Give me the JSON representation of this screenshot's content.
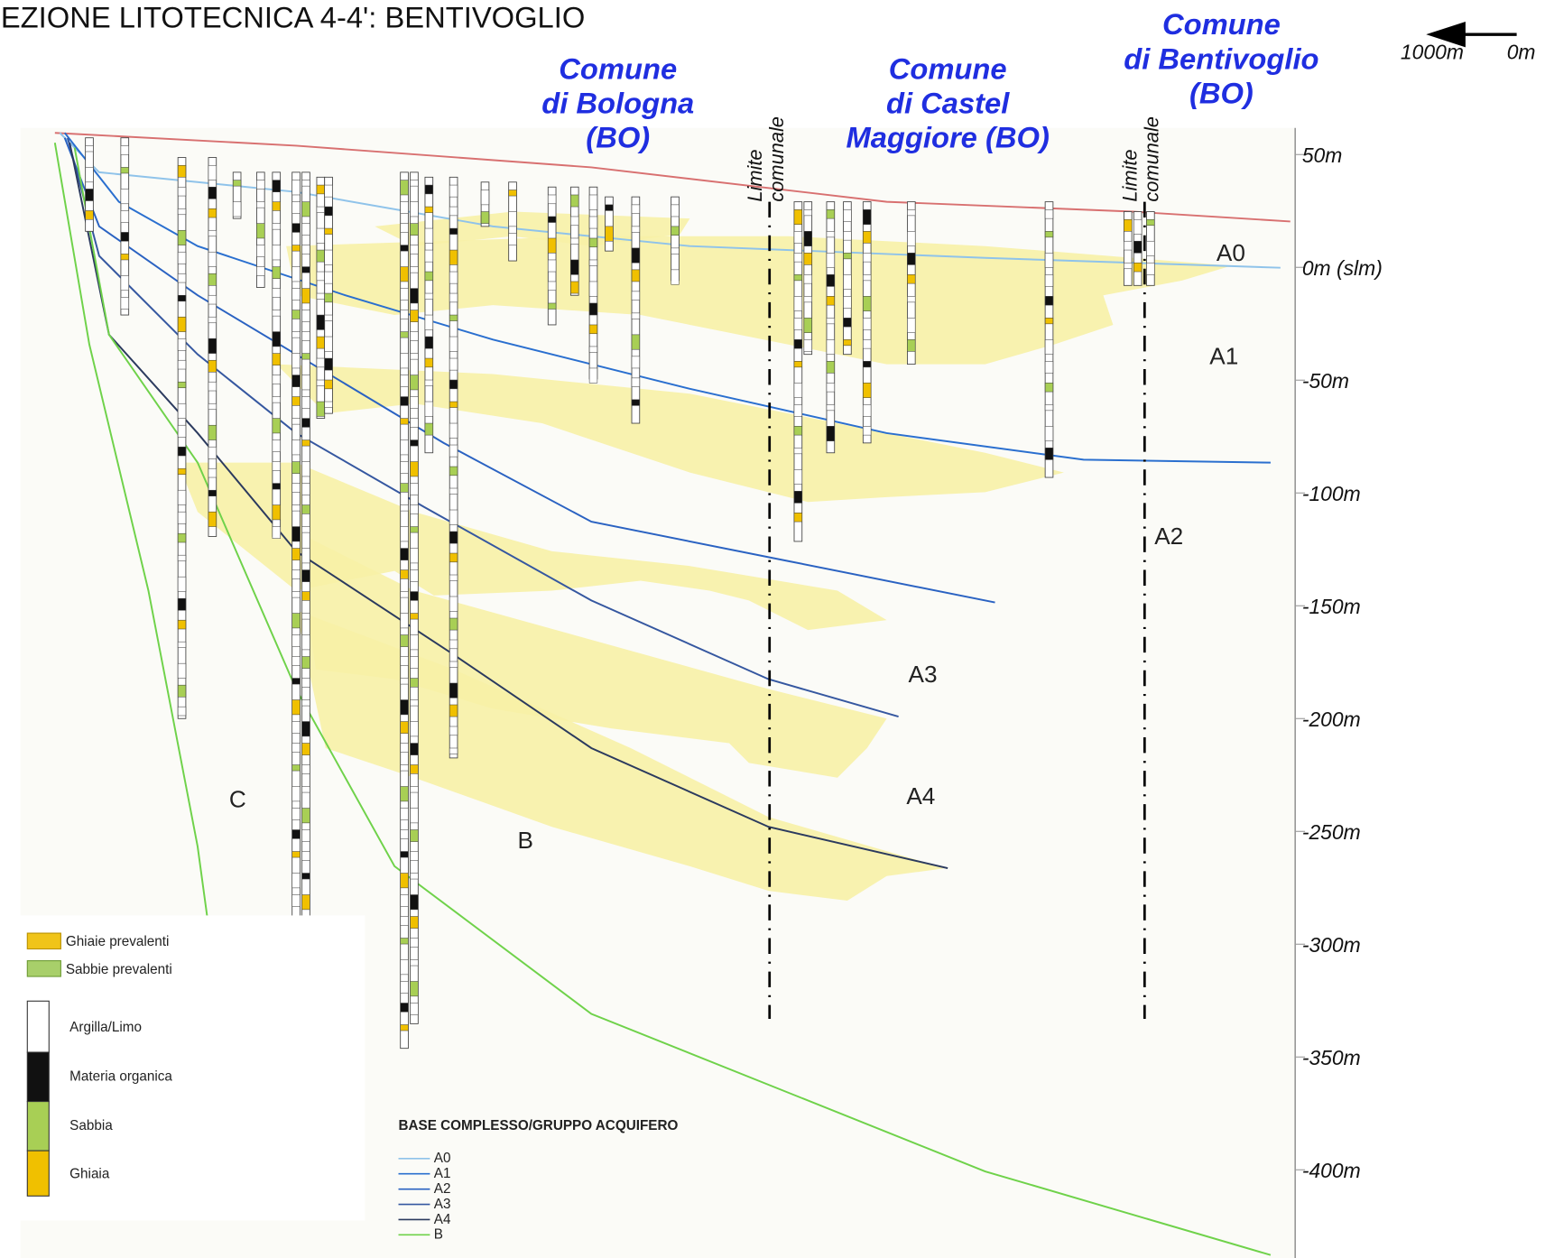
{
  "title": "EZIONE LITOTECNICA 4-4': BENTIVOGLIO",
  "scale": {
    "left": "1000m",
    "right": "0m"
  },
  "comuni": [
    {
      "lines": [
        "Comune",
        "di Bologna",
        "(BO)"
      ]
    },
    {
      "lines": [
        "Comune",
        "di Castel",
        "Maggiore (BO)"
      ]
    },
    {
      "lines": [
        "Comune",
        "di Bentivoglio",
        "(BO)"
      ]
    }
  ],
  "boundaries": [
    {
      "lines": [
        "Limite",
        "comunale"
      ]
    },
    {
      "lines": [
        "Limite",
        "comunale"
      ]
    }
  ],
  "depth_labels": [
    "50m",
    "0m (slm)",
    "-50m",
    "-100m",
    "-150m",
    "-200m",
    "-250m",
    "-300m",
    "-350m",
    "-400m"
  ],
  "units": [
    "A0",
    "A1",
    "A2",
    "A3",
    "A4",
    "B",
    "C"
  ],
  "legend": {
    "facies": [
      "Ghiaie prevalenti",
      "Sabbie prevalenti"
    ],
    "lithology": [
      "Argilla/Limo",
      "Materia organica",
      "Sabbia",
      "Ghiaia"
    ],
    "bases_title": "BASE COMPLESSO/GRUPPO ACQUIFERO",
    "bases": [
      "A0",
      "A1",
      "A2",
      "A3",
      "A4",
      "B"
    ]
  }
}
